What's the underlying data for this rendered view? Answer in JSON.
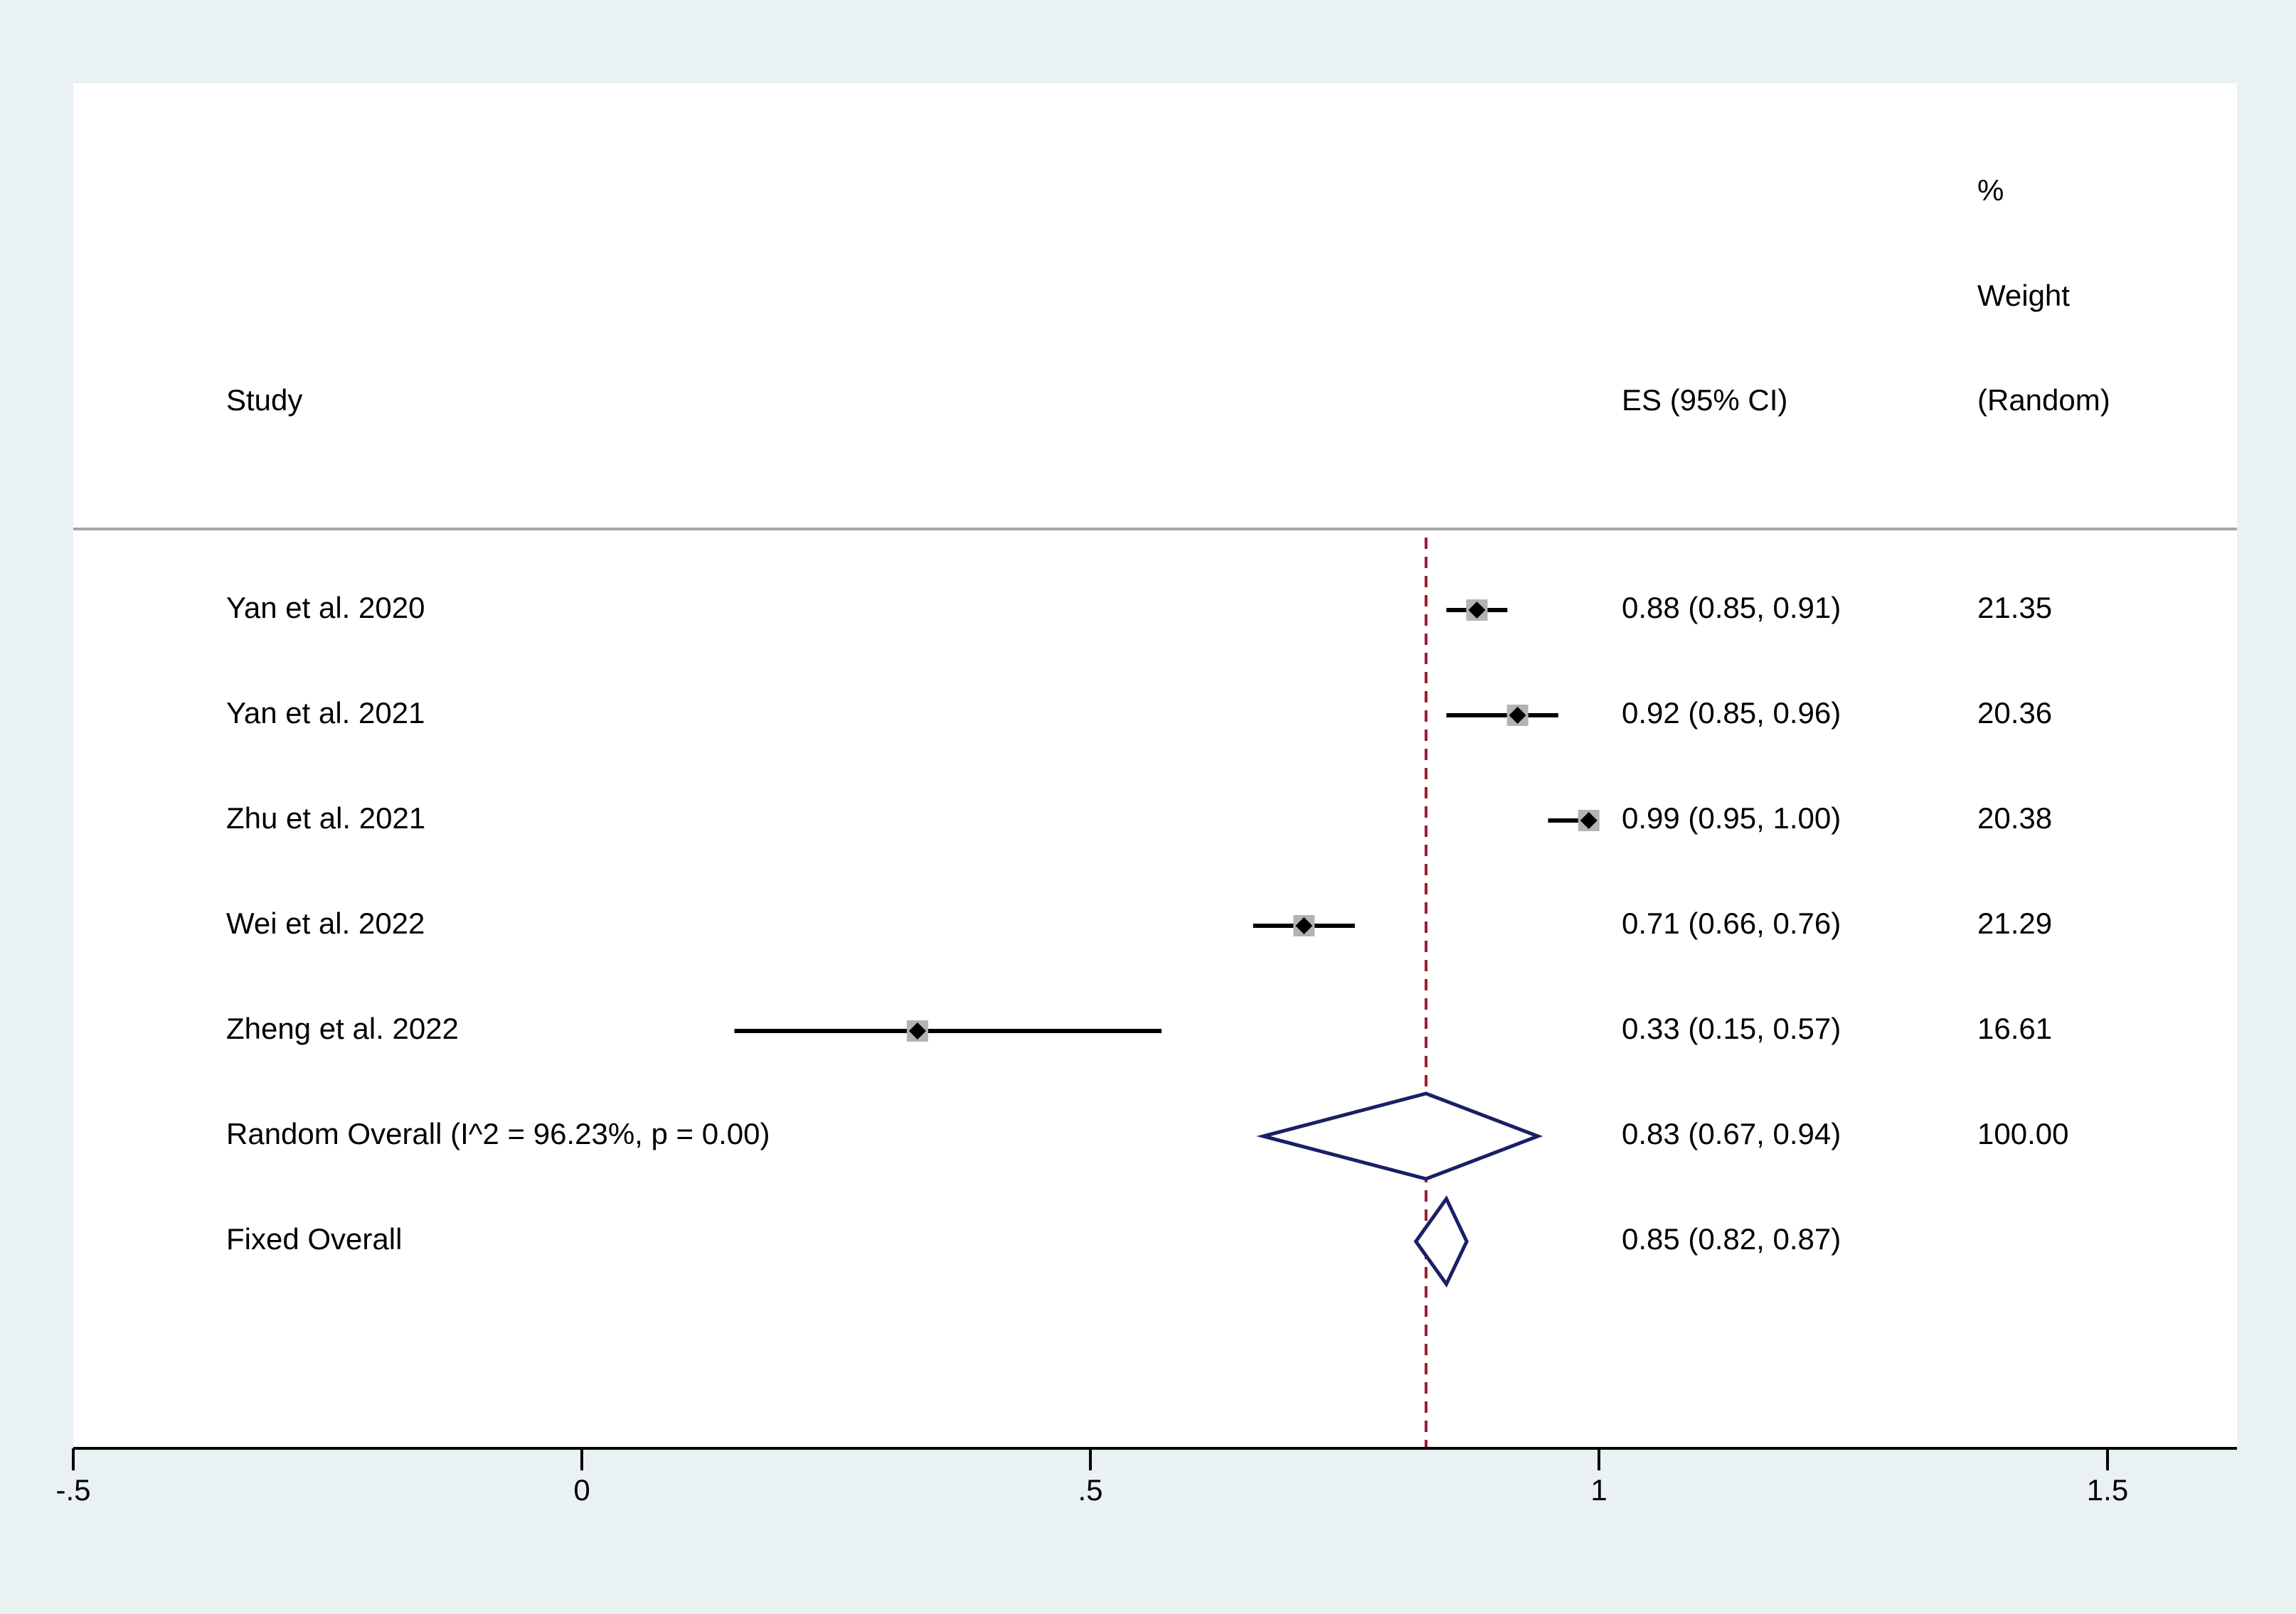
{
  "header": {
    "study": "Study",
    "es": "ES (95% CI)",
    "weight_line1": "%",
    "weight_line2": "Weight",
    "weight_line3": "(Random)"
  },
  "colors": {
    "background": "#e9f1f3",
    "panel": "#ffffff",
    "point": "#000000",
    "box": "#b3b3b3",
    "diamond": "#1a1f66",
    "reference_line": "#9b1b2e",
    "separator": "#a6a6a6"
  },
  "chart_data": {
    "type": "forest",
    "x_axis": {
      "ticks": [
        -0.5,
        0,
        0.5,
        1,
        1.5
      ],
      "tick_labels": [
        "-.5",
        "0",
        ".5",
        "1",
        "1.5"
      ],
      "range": [
        -0.5,
        1.62
      ]
    },
    "reference_line": 0.83,
    "studies": [
      {
        "label": "Yan et al. 2020",
        "es": 0.88,
        "lo": 0.85,
        "hi": 0.91,
        "es_text": "0.88 (0.85, 0.91)",
        "weight": "21.35"
      },
      {
        "label": "Yan et al. 2021",
        "es": 0.92,
        "lo": 0.85,
        "hi": 0.96,
        "es_text": "0.92 (0.85, 0.96)",
        "weight": "20.36"
      },
      {
        "label": "Zhu et al. 2021",
        "es": 0.99,
        "lo": 0.95,
        "hi": 1.0,
        "es_text": "0.99 (0.95, 1.00)",
        "weight": "20.38"
      },
      {
        "label": "Wei et al. 2022",
        "es": 0.71,
        "lo": 0.66,
        "hi": 0.76,
        "es_text": "0.71 (0.66, 0.76)",
        "weight": "21.29"
      },
      {
        "label": "Zheng et al. 2022",
        "es": 0.33,
        "lo": 0.15,
        "hi": 0.57,
        "es_text": "0.33 (0.15, 0.57)",
        "weight": "16.61"
      }
    ],
    "overall": [
      {
        "label": "Random Overall  (I^2 = 96.23%, p = 0.00)",
        "es": 0.83,
        "lo": 0.67,
        "hi": 0.94,
        "es_text": "0.83 (0.67, 0.94)",
        "weight": "100.00"
      },
      {
        "label": "Fixed Overall",
        "es": 0.85,
        "lo": 0.82,
        "hi": 0.87,
        "es_text": "0.85 (0.82, 0.87)",
        "weight": ""
      }
    ]
  }
}
